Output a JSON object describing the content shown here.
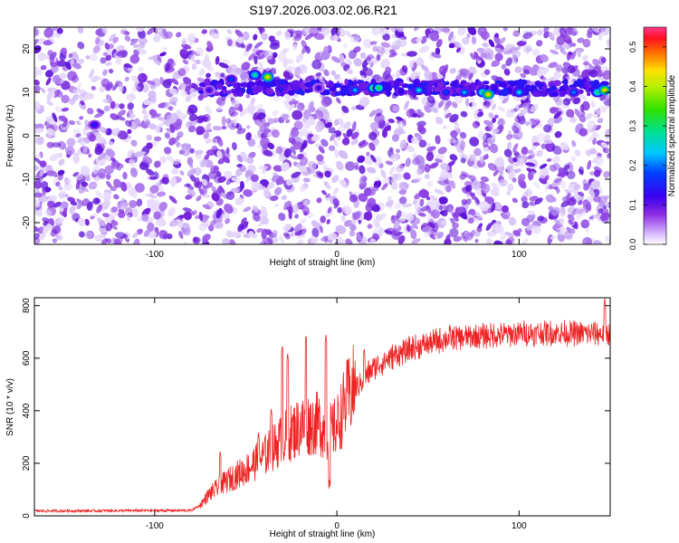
{
  "title": "S197.2026.003.02.06.R21",
  "chart_data": [
    {
      "type": "heatmap",
      "xlabel": "Height of straight line (km)",
      "ylabel": "Frequency (Hz)",
      "xlim": [
        -166,
        150
      ],
      "ylim": [
        -25,
        25
      ],
      "x_ticks": [
        -100,
        0,
        100
      ],
      "y_ticks": [
        -20,
        -10,
        0,
        10,
        20
      ],
      "colorbar": {
        "label": "Normalized spectral amplitude",
        "range": [
          0,
          0.55
        ],
        "ticks": [
          0.0,
          0.1,
          0.2,
          0.3,
          0.4,
          0.5
        ]
      },
      "signal_band_hz": 11,
      "hotspots": [
        {
          "x": -133,
          "y": 2.5,
          "value": 0.15
        },
        {
          "x": -70,
          "y": 10.5,
          "value": 0.12
        },
        {
          "x": -58,
          "y": 13,
          "value": 0.18
        },
        {
          "x": -45,
          "y": 14,
          "value": 0.28
        },
        {
          "x": -38,
          "y": 13.5,
          "value": 0.45
        },
        {
          "x": -10,
          "y": 11,
          "value": 0.12
        },
        {
          "x": 10,
          "y": 10.5,
          "value": 0.22
        },
        {
          "x": 20,
          "y": 11,
          "value": 0.35
        },
        {
          "x": 23,
          "y": 11,
          "value": 0.32
        },
        {
          "x": 45,
          "y": 10.5,
          "value": 0.25
        },
        {
          "x": 60,
          "y": 10,
          "value": 0.18
        },
        {
          "x": 70,
          "y": 10,
          "value": 0.22
        },
        {
          "x": 80,
          "y": 10,
          "value": 0.3
        },
        {
          "x": 83,
          "y": 9.5,
          "value": 0.45
        },
        {
          "x": 100,
          "y": 10,
          "value": 0.25
        },
        {
          "x": 130,
          "y": 10,
          "value": 0.2
        },
        {
          "x": 143,
          "y": 10,
          "value": 0.3
        },
        {
          "x": 147,
          "y": 10.5,
          "value": 0.45
        }
      ]
    },
    {
      "type": "line",
      "xlabel": "Height of straight line (km)",
      "ylabel": "SNR (10 * v/v)",
      "xlim": [
        -166,
        150
      ],
      "ylim": [
        0,
        830
      ],
      "x_ticks": [
        -100,
        0,
        100
      ],
      "y_ticks": [
        0,
        200,
        400,
        600,
        800
      ],
      "series": [
        {
          "color": "#ee2222",
          "envelope_x": [
            -166,
            -80,
            -75,
            -70,
            -60,
            -50,
            -40,
            -30,
            -20,
            -10,
            -5,
            0,
            5,
            10,
            20,
            30,
            40,
            60,
            80,
            100,
            120,
            140,
            150
          ],
          "envelope_y": [
            18,
            20,
            40,
            80,
            130,
            170,
            220,
            280,
            330,
            340,
            300,
            330,
            420,
            480,
            560,
            600,
            630,
            670,
            680,
            690,
            690,
            690,
            690
          ],
          "spikes": [
            {
              "x": -64,
              "y": 250
            },
            {
              "x": -43,
              "y": 320
            },
            {
              "x": -36,
              "y": 410
            },
            {
              "x": -30,
              "y": 650
            },
            {
              "x": -27,
              "y": 620
            },
            {
              "x": -17,
              "y": 690
            },
            {
              "x": -6,
              "y": 690
            },
            {
              "x": -4,
              "y": 140
            },
            {
              "x": 15,
              "y": 640
            },
            {
              "x": 147,
              "y": 830
            }
          ]
        }
      ]
    }
  ]
}
